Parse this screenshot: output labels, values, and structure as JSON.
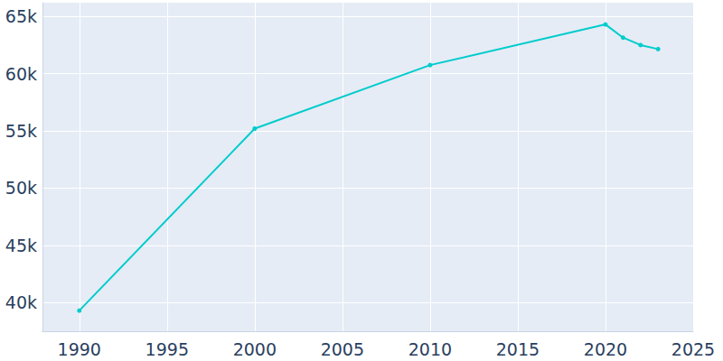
{
  "chart_data": {
    "type": "line",
    "x": [
      1990,
      2000,
      2010,
      2020,
      2021,
      2022,
      2023
    ],
    "values": [
      39300,
      55200,
      60750,
      64300,
      63150,
      62500,
      62150
    ],
    "color": "#00cccc",
    "marker": "circle",
    "xlim": [
      1987.9,
      2025
    ],
    "xticks": [
      1990,
      1995,
      2000,
      2005,
      2010,
      2015,
      2020,
      2025
    ],
    "ylim": [
      37500,
      66200
    ],
    "yticks": [
      {
        "value": 40000,
        "label": "40k"
      },
      {
        "value": 45000,
        "label": "45k"
      },
      {
        "value": 50000,
        "label": "50k"
      },
      {
        "value": 55000,
        "label": "55k"
      },
      {
        "value": 60000,
        "label": "60k"
      },
      {
        "value": 65000,
        "label": "65k"
      }
    ],
    "grid": true
  }
}
